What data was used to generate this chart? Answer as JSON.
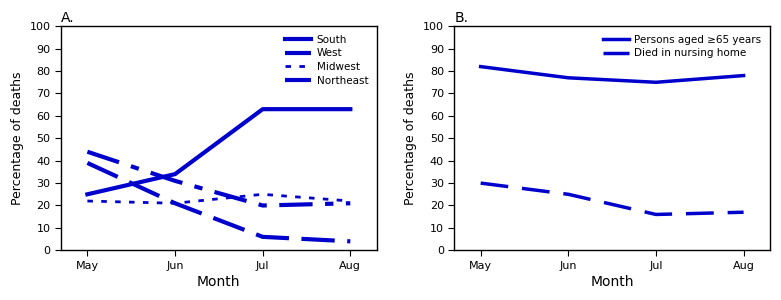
{
  "months": [
    "May",
    "Jun",
    "Jul",
    "Aug"
  ],
  "panel_A": {
    "title": "A.",
    "ylabel": "Percentage of deaths",
    "xlabel": "Month",
    "ylim": [
      0,
      100
    ],
    "yticks": [
      0,
      10,
      20,
      30,
      40,
      50,
      60,
      70,
      80,
      90,
      100
    ],
    "series": [
      {
        "name": "South",
        "values": [
          25,
          34,
          63,
          63
        ],
        "linestyle": "solid",
        "linewidth": 3.0,
        "dashes": null
      },
      {
        "name": "West",
        "values": [
          44,
          31,
          20,
          21
        ],
        "linestyle": "custom",
        "linewidth": 3.0,
        "dashes": [
          8,
          3,
          2,
          3
        ]
      },
      {
        "name": "Midwest",
        "values": [
          22,
          21,
          25,
          22
        ],
        "linestyle": "custom",
        "linewidth": 2.0,
        "dashes": [
          2,
          3
        ]
      },
      {
        "name": "Northeast",
        "values": [
          39,
          21,
          6,
          4
        ],
        "linestyle": "custom",
        "linewidth": 3.0,
        "dashes": [
          8,
          3
        ]
      }
    ],
    "color": "#0000cc",
    "legend_loc": "upper right"
  },
  "panel_B": {
    "title": "B.",
    "ylabel": "Percentage of deaths",
    "xlabel": "Month",
    "ylim": [
      0,
      100
    ],
    "yticks": [
      0,
      10,
      20,
      30,
      40,
      50,
      60,
      70,
      80,
      90,
      100
    ],
    "series": [
      {
        "name": "Persons aged ≥65 years",
        "values": [
          82,
          77,
          75,
          78
        ],
        "linestyle": "solid",
        "linewidth": 2.5,
        "dashes": null
      },
      {
        "name": "Died in nursing home",
        "values": [
          30,
          25,
          16,
          17
        ],
        "linestyle": "custom",
        "linewidth": 2.5,
        "dashes": [
          8,
          4
        ]
      }
    ],
    "color": "#0000cc",
    "legend_loc": "upper right"
  }
}
